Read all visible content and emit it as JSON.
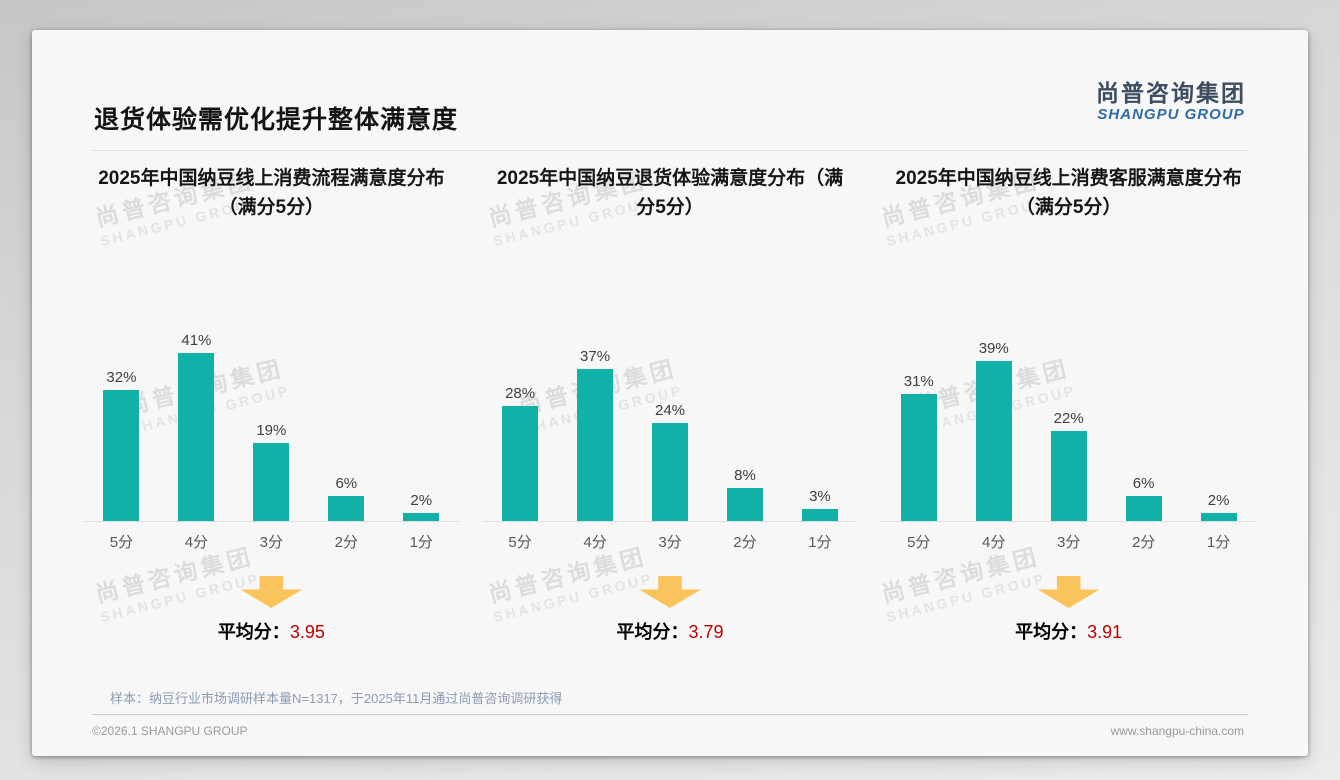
{
  "page": {
    "title": "退货体验需优化提升整体满意度",
    "logo": {
      "cn": "尚普咨询集团",
      "en": "SHANGPU GROUP"
    },
    "watermark": {
      "line1": "尚普咨询集团",
      "line2": "SHANGPU GROUP"
    },
    "sample_note": "样本：纳豆行业市场调研样本量N=1317，于2025年11月通过尚普咨询调研获得",
    "footer": {
      "left": "©2026.1 SHANGPU GROUP",
      "right": "www.shangpu-china.com"
    }
  },
  "colors": {
    "bar": "#12b1a7",
    "arrow": "#f9c45c",
    "avg_value": "#c00000",
    "logo_cn": "#3d4d61",
    "logo_en": "#2e6ba8"
  },
  "chart_data": [
    {
      "type": "bar",
      "title": "2025年中国纳豆线上消费流程满意度分布（满分5分）",
      "categories": [
        "5分",
        "4分",
        "3分",
        "2分",
        "1分"
      ],
      "values": [
        32,
        41,
        19,
        6,
        2
      ],
      "unit": "%",
      "ylim": [
        0,
        45
      ],
      "grid": false,
      "legend": false,
      "average": {
        "label": "平均分：",
        "value": "3.95"
      }
    },
    {
      "type": "bar",
      "title": "2025年中国纳豆退货体验满意度分布（满分5分）",
      "categories": [
        "5分",
        "4分",
        "3分",
        "2分",
        "1分"
      ],
      "values": [
        28,
        37,
        24,
        8,
        3
      ],
      "unit": "%",
      "ylim": [
        0,
        45
      ],
      "grid": false,
      "legend": false,
      "average": {
        "label": "平均分：",
        "value": "3.79"
      }
    },
    {
      "type": "bar",
      "title": "2025年中国纳豆线上消费客服满意度分布（满分5分）",
      "categories": [
        "5分",
        "4分",
        "3分",
        "2分",
        "1分"
      ],
      "values": [
        31,
        39,
        22,
        6,
        2
      ],
      "unit": "%",
      "ylim": [
        0,
        45
      ],
      "grid": false,
      "legend": false,
      "average": {
        "label": "平均分：",
        "value": "3.91"
      }
    }
  ]
}
